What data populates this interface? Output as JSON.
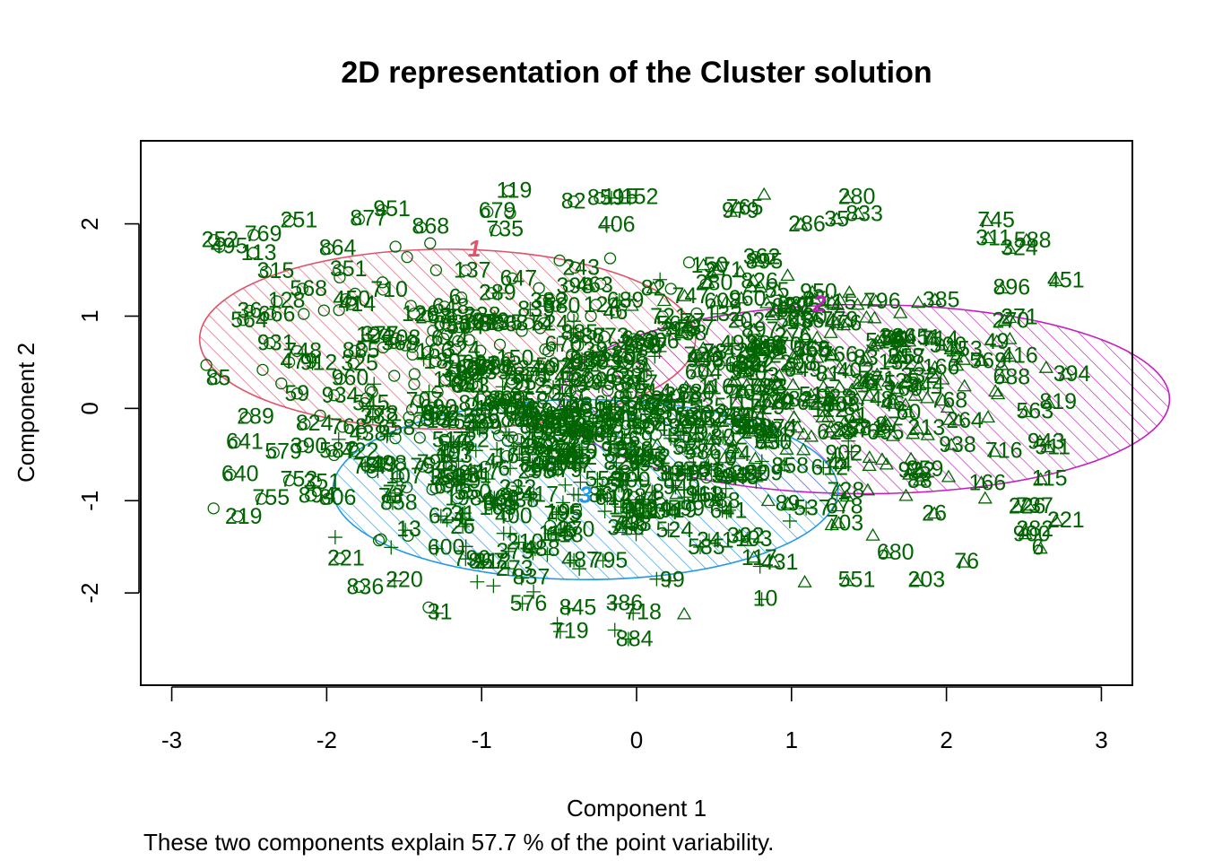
{
  "chart_data": {
    "type": "scatter",
    "title": "2D representation of the Cluster solution",
    "xlabel": "Component 1",
    "ylabel": "Component 2",
    "subtitle": "These two components explain 57.7 % of the point variability.",
    "xlim": [
      -3.2,
      3.2
    ],
    "ylim": [
      -3.0,
      2.9
    ],
    "xticks": [
      -3,
      -2,
      -1,
      0,
      1,
      2,
      3
    ],
    "yticks": [
      -2,
      -1,
      0,
      1,
      2
    ],
    "point_color": "#006400",
    "clusters": [
      {
        "label": "1",
        "color": "#DF536B",
        "center": [
          -1.22,
          0.75
        ],
        "rx": 1.6,
        "ry": 1.95,
        "marker": "circle"
      },
      {
        "label": "2",
        "color": "#C41EC0",
        "center": [
          1.47,
          0.1
        ],
        "rx": 1.97,
        "ry": 2.05,
        "marker": "triangle"
      },
      {
        "label": "3",
        "color": "#2297E6",
        "center": [
          -0.33,
          -0.88
        ],
        "rx": 1.63,
        "ry": 1.95,
        "marker": "plus"
      }
    ],
    "labeled_points": [
      {
        "label": "951",
        "x": -1.7,
        "y": 2.17,
        "cluster": 1
      },
      {
        "label": "251",
        "x": -2.3,
        "y": 2.05,
        "cluster": 1
      },
      {
        "label": "877",
        "x": -1.85,
        "y": 2.07,
        "cluster": 1
      },
      {
        "label": "769",
        "x": -2.53,
        "y": 1.9,
        "cluster": 1
      },
      {
        "label": "495",
        "x": -2.75,
        "y": 1.77,
        "cluster": 1
      },
      {
        "label": "868",
        "x": -1.45,
        "y": 1.98,
        "cluster": 1
      },
      {
        "label": "864",
        "x": -2.05,
        "y": 1.75,
        "cluster": 1
      },
      {
        "label": "351",
        "x": -1.98,
        "y": 1.52,
        "cluster": 1
      },
      {
        "label": "315",
        "x": -2.45,
        "y": 1.5,
        "cluster": 1
      },
      {
        "label": "128",
        "x": -2.38,
        "y": 1.18,
        "cluster": 1
      },
      {
        "label": "479",
        "x": -2.3,
        "y": 0.52,
        "cluster": 1
      },
      {
        "label": "85",
        "x": -2.78,
        "y": 0.34,
        "cluster": 1
      },
      {
        "label": "960",
        "x": -1.97,
        "y": 0.34,
        "cluster": 1
      },
      {
        "label": "289",
        "x": -2.58,
        "y": -0.08,
        "cluster": 1
      },
      {
        "label": "824",
        "x": -2.2,
        "y": -0.15,
        "cluster": 1
      },
      {
        "label": "641",
        "x": -2.65,
        "y": -0.35,
        "cluster": 1
      },
      {
        "label": "579",
        "x": -2.4,
        "y": -0.46,
        "cluster": 1
      },
      {
        "label": "640",
        "x": -2.68,
        "y": -0.7,
        "cluster": 1
      },
      {
        "label": "752",
        "x": -2.3,
        "y": -0.76,
        "cluster": 1
      },
      {
        "label": "755",
        "x": -2.48,
        "y": -0.96,
        "cluster": 1
      },
      {
        "label": "806",
        "x": -2.05,
        "y": -0.96,
        "cluster": 1
      },
      {
        "label": "679",
        "x": -1.02,
        "y": 2.15,
        "cluster": 1
      },
      {
        "label": "735",
        "x": -0.97,
        "y": 1.95,
        "cluster": 1
      },
      {
        "label": "115",
        "x": -0.22,
        "y": 2.3,
        "cluster": 3
      },
      {
        "label": "152",
        "x": -0.1,
        "y": 2.3,
        "cluster": 3
      },
      {
        "label": "406",
        "x": -0.25,
        "y": 2.0,
        "cluster": 3
      },
      {
        "label": "280",
        "x": 1.3,
        "y": 2.3,
        "cluster": 2
      },
      {
        "label": "979",
        "x": 0.55,
        "y": 2.15,
        "cluster": 2
      },
      {
        "label": "745",
        "x": 2.2,
        "y": 2.05,
        "cluster": 2
      },
      {
        "label": "324",
        "x": 2.35,
        "y": 1.75,
        "cluster": 2
      },
      {
        "label": "451",
        "x": 2.65,
        "y": 1.4,
        "cluster": 2
      },
      {
        "label": "896",
        "x": 2.3,
        "y": 1.32,
        "cluster": 2
      },
      {
        "label": "271",
        "x": 2.35,
        "y": 1.0,
        "cluster": 2
      },
      {
        "label": "416",
        "x": 2.35,
        "y": 0.58,
        "cluster": 2
      },
      {
        "label": "688",
        "x": 2.3,
        "y": 0.35,
        "cluster": 2
      },
      {
        "label": "819",
        "x": 2.6,
        "y": 0.08,
        "cluster": 2
      },
      {
        "label": "563",
        "x": 2.45,
        "y": -0.02,
        "cluster": 2
      },
      {
        "label": "213",
        "x": 1.75,
        "y": -0.2,
        "cluster": 2
      },
      {
        "label": "716",
        "x": 2.25,
        "y": -0.45,
        "cluster": 2
      },
      {
        "label": "115",
        "x": 2.55,
        "y": -0.75,
        "cluster": 2
      },
      {
        "label": "226",
        "x": 2.4,
        "y": -1.05,
        "cluster": 2
      },
      {
        "label": "221",
        "x": 2.65,
        "y": -1.2,
        "cluster": 2
      },
      {
        "label": "282",
        "x": 2.45,
        "y": -1.3,
        "cluster": 2
      },
      {
        "label": "6",
        "x": 2.55,
        "y": -1.5,
        "cluster": 2
      },
      {
        "label": "76",
        "x": 2.05,
        "y": -1.65,
        "cluster": 2
      },
      {
        "label": "680",
        "x": 1.55,
        "y": -1.55,
        "cluster": 2
      },
      {
        "label": "551",
        "x": 1.3,
        "y": -1.85,
        "cluster": 2
      },
      {
        "label": "203",
        "x": 1.75,
        "y": -1.85,
        "cluster": 2
      },
      {
        "label": "13",
        "x": -1.55,
        "y": -1.3,
        "cluster": 3
      },
      {
        "label": "600",
        "x": -1.35,
        "y": -1.5,
        "cluster": 3
      },
      {
        "label": "220",
        "x": -1.62,
        "y": -1.85,
        "cluster": 3
      },
      {
        "label": "212",
        "x": -1.05,
        "y": -1.65,
        "cluster": 3
      },
      {
        "label": "837",
        "x": -0.8,
        "y": -1.82,
        "cluster": 3
      },
      {
        "label": "845",
        "x": -0.5,
        "y": -2.15,
        "cluster": 3
      },
      {
        "label": "386",
        "x": -0.2,
        "y": -2.1,
        "cluster": 3
      },
      {
        "label": "718",
        "x": -0.08,
        "y": -2.2,
        "cluster": 3
      },
      {
        "label": "99",
        "x": 0.15,
        "y": -1.85,
        "cluster": 3
      },
      {
        "label": "31",
        "x": -1.35,
        "y": -2.2,
        "cluster": 3
      },
      {
        "label": "719",
        "x": -0.55,
        "y": -2.4,
        "cluster": 3
      },
      {
        "label": "10",
        "x": 0.75,
        "y": -2.05,
        "cluster": 3
      }
    ]
  }
}
